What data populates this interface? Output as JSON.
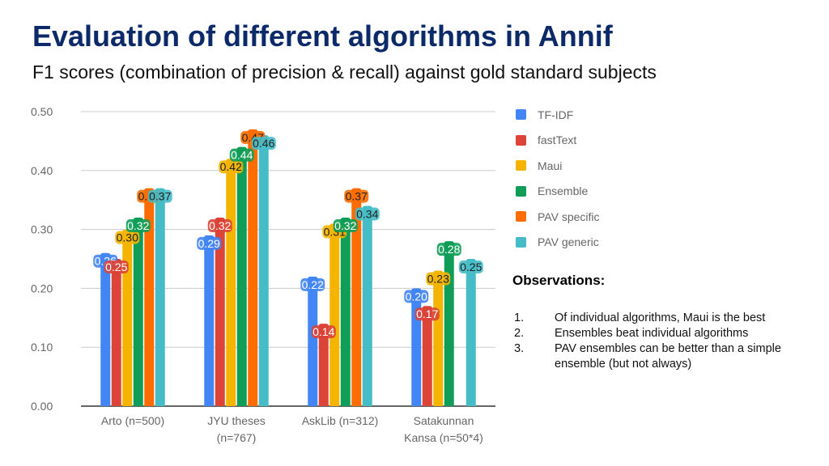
{
  "slide": {
    "title": "Evaluation of different algorithms in Annif",
    "subtitle": "F1 scores (combination of precision & recall) against gold standard subjects"
  },
  "observations": {
    "title": "Observations:",
    "items": [
      {
        "num": "1.",
        "text": "Of individual algorithms, Maui is the best"
      },
      {
        "num": "2.",
        "text": "Ensembles beat individual algorithms"
      },
      {
        "num": "3.",
        "text": "PAV ensembles can be better than a simple ensemble (but not always)"
      }
    ]
  },
  "chart_data": {
    "type": "bar",
    "title": "",
    "xlabel": "",
    "ylabel": "",
    "ylim": [
      0,
      0.5
    ],
    "yticks": [
      "0.00",
      "0.10",
      "0.20",
      "0.30",
      "0.40",
      "0.50"
    ],
    "grid": true,
    "legend_position": "right",
    "categories": [
      [
        "Arto (n=500)"
      ],
      [
        "JYU theses",
        "(n=767)"
      ],
      [
        "AskLib (n=312)"
      ],
      [
        "Satakunnan",
        "Kansa (n=50*4)"
      ]
    ],
    "series": [
      {
        "name": "TF-IDF",
        "color": "#4285f4",
        "values": [
          0.26,
          0.29,
          0.22,
          0.2
        ]
      },
      {
        "name": "fastText",
        "color": "#db4437",
        "values": [
          0.25,
          0.32,
          0.14,
          0.17
        ]
      },
      {
        "name": "Maui",
        "color": "#f4b400",
        "values": [
          0.3,
          0.42,
          0.31,
          0.23
        ]
      },
      {
        "name": "Ensemble",
        "color": "#0f9d58",
        "values": [
          0.32,
          0.44,
          0.32,
          0.28
        ]
      },
      {
        "name": "PAV specific",
        "color": "#ff6d00",
        "values": [
          0.37,
          0.47,
          0.37,
          null
        ]
      },
      {
        "name": "PAV generic",
        "color": "#46bdc6",
        "values": [
          0.37,
          0.46,
          0.34,
          0.25
        ]
      }
    ]
  }
}
